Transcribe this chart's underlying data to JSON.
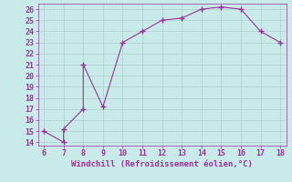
{
  "x": [
    6,
    7,
    7,
    8,
    8,
    9,
    10,
    11,
    12,
    13,
    14,
    15,
    16,
    17,
    18
  ],
  "y": [
    15.0,
    14.0,
    15.2,
    17.0,
    21.0,
    17.2,
    23.0,
    24.0,
    25.0,
    25.2,
    26.0,
    26.2,
    26.0,
    24.0,
    23.0
  ],
  "line_color": "#993399",
  "marker_color": "#993399",
  "bg_color": "#c8eae8",
  "grid_color": "#b0d4d0",
  "xlabel": "Windchill (Refroidissement éolien,°C)",
  "xlabel_color": "#993399",
  "tick_color": "#993399",
  "xlim": [
    6,
    18
  ],
  "ylim": [
    14,
    26
  ],
  "xticks": [
    6,
    7,
    8,
    9,
    10,
    11,
    12,
    13,
    14,
    15,
    16,
    17,
    18
  ],
  "yticks": [
    14,
    15,
    16,
    17,
    18,
    19,
    20,
    21,
    22,
    23,
    24,
    25,
    26
  ],
  "fontsize_label": 6.5,
  "fontsize_tick": 6
}
